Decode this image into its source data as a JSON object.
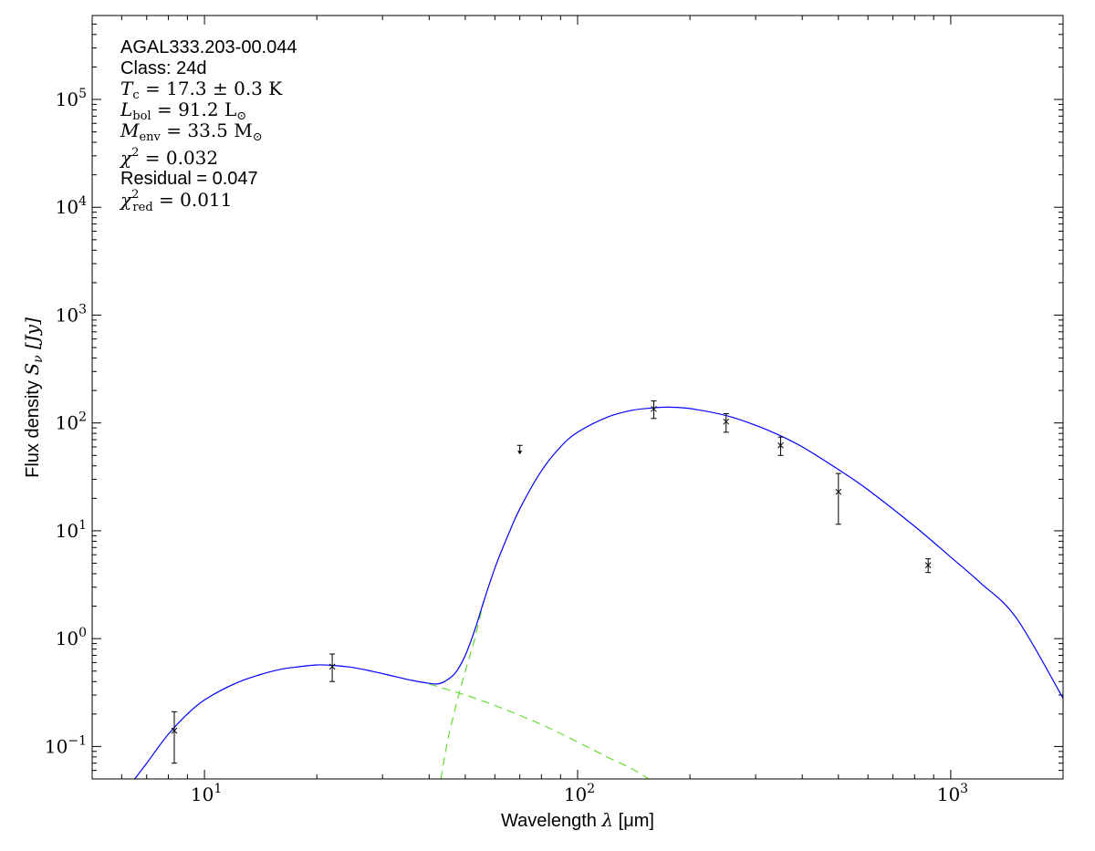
{
  "chart_data": {
    "type": "scatter",
    "xscale": "log",
    "yscale": "log",
    "xlim": [
      5,
      2000
    ],
    "ylim": [
      0.05,
      600000
    ],
    "xlabel_text": "Wavelength ",
    "xlabel_symbol": "λ",
    "xlabel_unit": " [μm]",
    "ylabel_text": "Flux density ",
    "ylabel_symbol": "S",
    "ylabel_sub": "ν",
    "ylabel_unit": " [Jy]",
    "x_ticks": [
      {
        "value": 10,
        "base": "10",
        "exp": "1"
      },
      {
        "value": 100,
        "base": "10",
        "exp": "2"
      },
      {
        "value": 1000,
        "base": "10",
        "exp": "3"
      }
    ],
    "y_ticks": [
      {
        "value": 0.1,
        "base": "10",
        "exp": "−1"
      },
      {
        "value": 1,
        "base": "10",
        "exp": "0"
      },
      {
        "value": 10,
        "base": "10",
        "exp": "1"
      },
      {
        "value": 100,
        "base": "10",
        "exp": "2"
      },
      {
        "value": 1000,
        "base": "10",
        "exp": "3"
      },
      {
        "value": 10000,
        "base": "10",
        "exp": "4"
      },
      {
        "value": 100000,
        "base": "10",
        "exp": "5"
      }
    ],
    "annotations": {
      "source": "AGAL333.203-00.044",
      "class_label": "Class: 24d",
      "tc_sym": "T",
      "tc_sub": "c",
      "tc_val": " = 17.3 ± 0.3 K",
      "lbol_sym": "L",
      "lbol_sub": "bol",
      "lbol_val": " = 91.2 L",
      "lbol_unit_sub": "⊙",
      "menv_sym": "M",
      "menv_sub": "env",
      "menv_val": " = 33.5 M",
      "menv_unit_sub": "⊙",
      "chi2_sym": "χ",
      "chi2_sup": "2",
      "chi2_val": " = 0.032",
      "residual": "Residual = 0.047",
      "chi2red_sym": "χ",
      "chi2red_sup": "2",
      "chi2red_sub": "red",
      "chi2red_val": " = 0.011"
    },
    "observations": [
      {
        "x": 8.3,
        "y": 0.14,
        "ylo": 0.07,
        "yhi": 0.21
      },
      {
        "x": 22,
        "y": 0.55,
        "ylo": 0.4,
        "yhi": 0.72
      },
      {
        "x": 160,
        "y": 135,
        "ylo": 110,
        "yhi": 160
      },
      {
        "x": 250,
        "y": 103,
        "ylo": 82,
        "yhi": 122
      },
      {
        "x": 350,
        "y": 62,
        "ylo": 50,
        "yhi": 74
      },
      {
        "x": 500,
        "y": 23,
        "ylo": 11.5,
        "yhi": 34
      },
      {
        "x": 870,
        "y": 4.8,
        "ylo": 4.1,
        "yhi": 5.5
      }
    ],
    "upper_limits": [
      {
        "x": 70,
        "y": 62
      }
    ],
    "model_total": [
      [
        6.5,
        0.05
      ],
      [
        7,
        0.07
      ],
      [
        8,
        0.13
      ],
      [
        9,
        0.2
      ],
      [
        10,
        0.27
      ],
      [
        12,
        0.38
      ],
      [
        14,
        0.46
      ],
      [
        16,
        0.52
      ],
      [
        18,
        0.55
      ],
      [
        20,
        0.57
      ],
      [
        22,
        0.565
      ],
      [
        25,
        0.54
      ],
      [
        28,
        0.5
      ],
      [
        32,
        0.45
      ],
      [
        36,
        0.41
      ],
      [
        40,
        0.385
      ],
      [
        42,
        0.38
      ],
      [
        44,
        0.4
      ],
      [
        47,
        0.48
      ],
      [
        50,
        0.7
      ],
      [
        53,
        1.2
      ],
      [
        56,
        2.2
      ],
      [
        60,
        4.5
      ],
      [
        65,
        9
      ],
      [
        70,
        16
      ],
      [
        80,
        36
      ],
      [
        90,
        60
      ],
      [
        100,
        82
      ],
      [
        120,
        113
      ],
      [
        140,
        131
      ],
      [
        160,
        138
      ],
      [
        175,
        140
      ],
      [
        200,
        136
      ],
      [
        250,
        117
      ],
      [
        300,
        95
      ],
      [
        350,
        76
      ],
      [
        400,
        60
      ],
      [
        500,
        37
      ],
      [
        600,
        24
      ],
      [
        800,
        11
      ],
      [
        1000,
        5.7
      ],
      [
        1200,
        3.3
      ],
      [
        1500,
        1.55
      ],
      [
        2000,
        0.28
      ]
    ],
    "model_warm_component": [
      [
        40,
        0.38
      ],
      [
        50,
        0.3
      ],
      [
        60,
        0.24
      ],
      [
        80,
        0.16
      ],
      [
        100,
        0.11
      ],
      [
        120,
        0.08
      ],
      [
        140,
        0.062
      ],
      [
        155,
        0.05
      ]
    ],
    "model_cold_component": [
      [
        43,
        0.05
      ],
      [
        45,
        0.12
      ],
      [
        48,
        0.3
      ],
      [
        50,
        0.5
      ],
      [
        53,
        1
      ],
      [
        56,
        2.2
      ]
    ],
    "colors": {
      "model": "#0000ff",
      "components": "#66dd33",
      "points": "#000000"
    },
    "grid": false,
    "legend": "none"
  }
}
